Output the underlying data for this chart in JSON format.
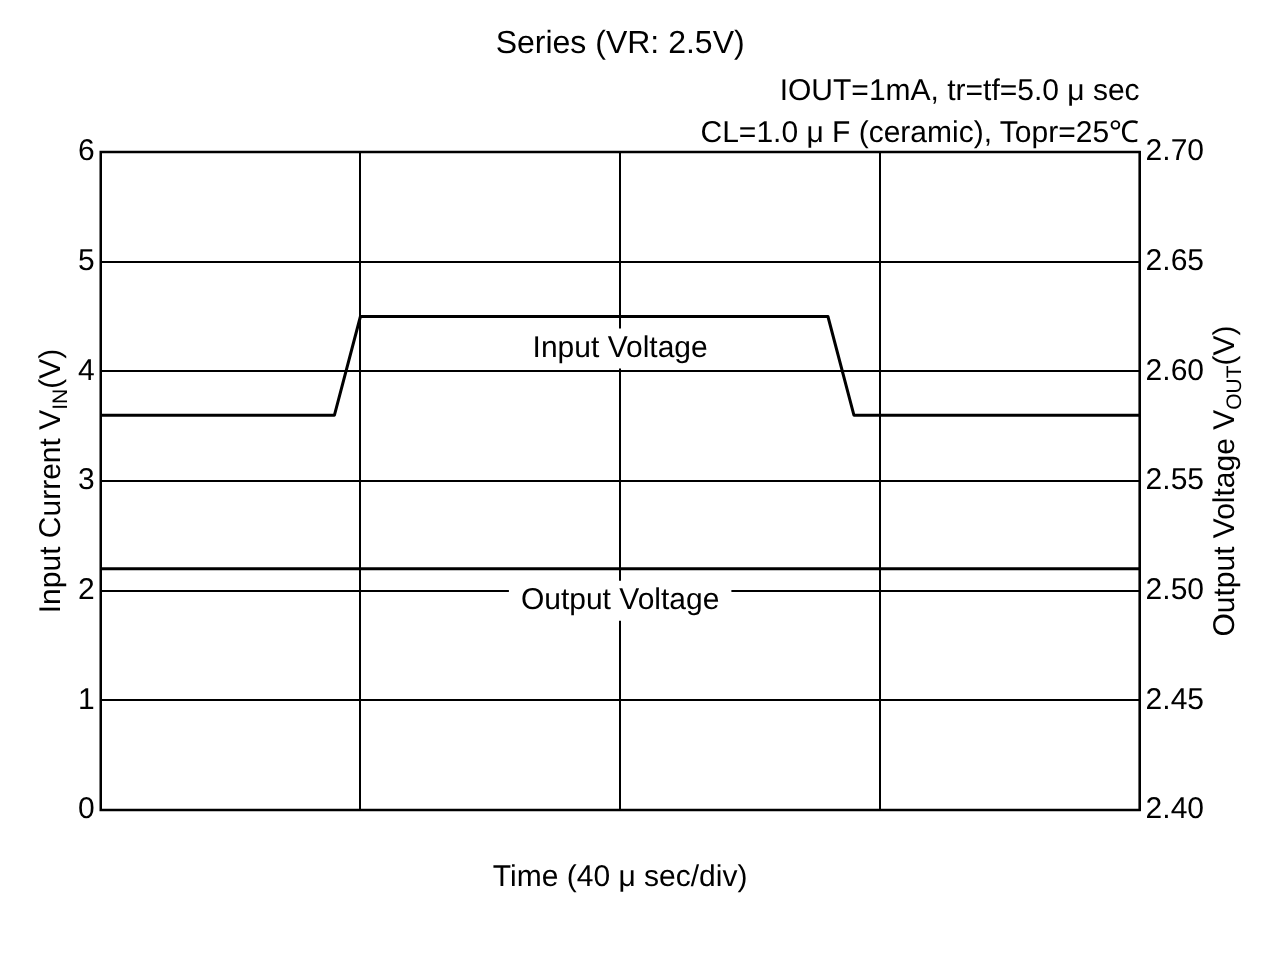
{
  "chart_data": {
    "type": "line",
    "title": "Series (VR: 2.5V)",
    "annotations": [
      "IOUT=1mA, tr=tf=5.0 μ sec",
      "CL=1.0 μ F (ceramic), Topr=25℃"
    ],
    "xlabel": "Time (40 μ sec/div)",
    "ylabel": "Input Current V$_{IN}$(V)",
    "y2label": "Output Voltage V$_{OUT}$(V)",
    "categories": [
      null,
      null,
      null,
      null,
      null,
      null,
      null,
      null,
      null,
      null,
      null,
      null,
      null,
      null,
      null,
      null,
      null,
      null,
      null,
      null,
      null,
      null,
      null,
      null,
      null,
      null,
      null,
      null,
      null,
      null,
      null,
      null,
      null,
      null,
      null,
      null,
      null,
      null,
      null,
      null,
      null
    ],
    "ylim": [
      0,
      6
    ],
    "yticks": [
      0,
      1,
      2,
      3,
      4,
      5,
      6
    ],
    "y2lim": [
      2.4,
      2.7
    ],
    "y2ticks": [
      {
        "value": 2.4,
        "label": "2.40"
      },
      {
        "value": 2.45,
        "label": "2.45"
      },
      {
        "value": 2.5,
        "label": "2.50"
      },
      {
        "value": 2.55,
        "label": "2.55"
      },
      {
        "value": 2.6,
        "label": "2.60"
      },
      {
        "value": 2.65,
        "label": "2.65"
      },
      {
        "value": 2.7,
        "label": "2.70"
      }
    ],
    "grid": true,
    "legend": false,
    "marker": "none",
    "line_style": "solid",
    "series": [
      {
        "name": "Input Voltage",
        "color": "#000000",
        "values": [
          3.6,
          3.6,
          3.6,
          3.6,
          3.6,
          3.6,
          3.6,
          3.6,
          3.6,
          3.6,
          4.5,
          4.5,
          4.5,
          4.5,
          4.5,
          4.5,
          4.5,
          4.5,
          4.5,
          4.5,
          4.5,
          4.5,
          4.5,
          4.5,
          4.5,
          4.5,
          4.5,
          4.5,
          4.5,
          3.6,
          3.6,
          3.6,
          3.6,
          3.6,
          3.6,
          3.6,
          3.6,
          3.6,
          3.6,
          3.6,
          3.6
        ]
      },
      {
        "name": "Output Voltage",
        "color": "#000000",
        "axis": "y2",
        "values": [
          2.51,
          2.51,
          2.51,
          2.51,
          2.51,
          2.51,
          2.51,
          2.51,
          2.51,
          2.51,
          2.51,
          2.51,
          2.51,
          2.51,
          2.51,
          2.51,
          2.51,
          2.51,
          2.51,
          2.51,
          2.51,
          2.51,
          2.51,
          2.51,
          2.51,
          2.51,
          2.51,
          2.51,
          2.51,
          2.51,
          2.51,
          2.51,
          2.51,
          2.51,
          2.51,
          2.51,
          2.51,
          2.51,
          2.51,
          2.51,
          2.51
        ]
      }
    ]
  }
}
